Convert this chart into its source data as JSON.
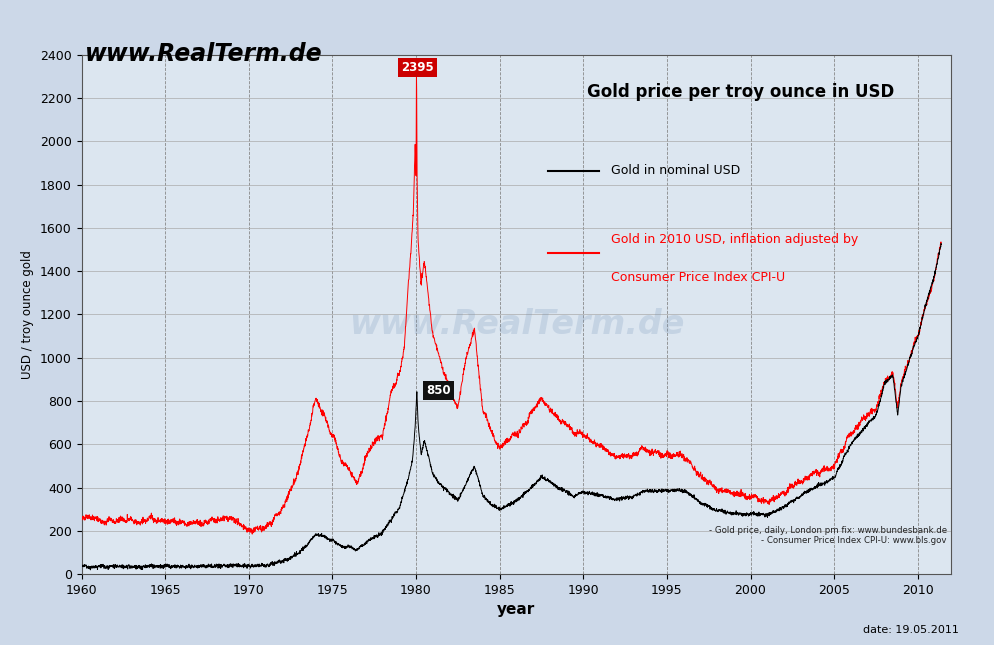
{
  "title": "Gold price per troy ounce in USD",
  "xlabel": "year",
  "ylabel": "USD / troy ounce gold",
  "watermark": "www.RealTerm.de",
  "source_text": "- Gold price, daily, London pm fix: www.bundesbank.de\n- Consumer Price Index CPI-U: www.bls.gov",
  "date_text": "date: 19.05.2011",
  "legend_line1": "Gold in nominal USD",
  "legend_line2": "Gold in 2010 USD, inflation adjusted by\nConsumer Price Index CPI-U",
  "nominal_color": "#000000",
  "real_color": "#ff0000",
  "bg_color": "#ccd8e8",
  "plot_bg_color": "#dce6f0",
  "annotation_peak_nominal": "850",
  "annotation_peak_real": "2395",
  "peak_year": 1980.08,
  "ylim": [
    0,
    2400
  ],
  "xlim_start": 1960,
  "xlim_end": 2012,
  "yticks": [
    0,
    200,
    400,
    600,
    800,
    1000,
    1200,
    1400,
    1600,
    1800,
    2000,
    2200,
    2400
  ],
  "xticks": [
    1960,
    1965,
    1970,
    1975,
    1980,
    1985,
    1990,
    1995,
    2000,
    2005,
    2010
  ]
}
